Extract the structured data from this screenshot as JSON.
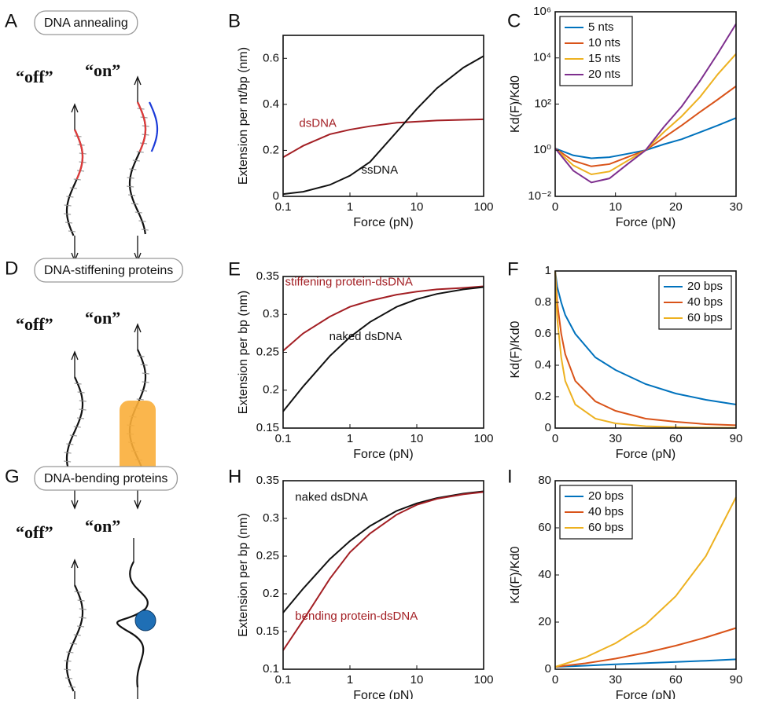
{
  "schematics": [
    {
      "label": "A",
      "title": "DNA annealing",
      "off": "“off”",
      "on": "“on”"
    },
    {
      "label": "D",
      "title": "DNA-stiffening proteins",
      "off": "“off”",
      "on": "“on”"
    },
    {
      "label": "G",
      "title": "DNA-bending proteins",
      "off": "“off”",
      "on": "“on”"
    }
  ],
  "chart_data": [
    {
      "type": "line",
      "panel": "B",
      "xlabel": "Force (pN)",
      "ylabel": "Extension per nt/bp (nm)",
      "xscale": "log",
      "xlim": [
        0.1,
        100
      ],
      "xticks": [
        0.1,
        1,
        10,
        100
      ],
      "ylim": [
        0,
        0.7
      ],
      "yticks": [
        0,
        0.2,
        0.4,
        0.6
      ],
      "x": [
        0.1,
        0.2,
        0.5,
        1,
        2,
        5,
        10,
        20,
        50,
        100
      ],
      "series": [
        {
          "name": "dsDNA",
          "color": "#a31f24",
          "values": [
            0.17,
            0.22,
            0.27,
            0.29,
            0.305,
            0.32,
            0.325,
            0.33,
            0.333,
            0.335
          ]
        },
        {
          "name": "ssDNA",
          "color": "#111111",
          "values": [
            0.01,
            0.02,
            0.05,
            0.09,
            0.15,
            0.28,
            0.38,
            0.47,
            0.56,
            0.61
          ]
        }
      ]
    },
    {
      "type": "line",
      "panel": "C",
      "xlabel": "Force (pN)",
      "ylabel": "Kd(F)/Kd0",
      "yscale": "log",
      "legend": "upper left",
      "xlim": [
        0,
        30
      ],
      "xticks": [
        0,
        10,
        20,
        30
      ],
      "ylim": [
        0.01,
        1000000
      ],
      "yticks": [
        {
          "value": 0.01,
          "label": "10⁻²"
        },
        {
          "value": 1,
          "label": "10⁰"
        },
        {
          "value": 100,
          "label": "10²"
        },
        {
          "value": 10000,
          "label": "10⁴"
        },
        {
          "value": 1000000,
          "label": "10⁶"
        }
      ],
      "x": [
        0,
        3,
        6,
        9,
        12,
        15,
        18,
        21,
        24,
        27,
        30
      ],
      "series": [
        {
          "name": "5 nts",
          "color": "#0072bd",
          "values": [
            1.2,
            0.6,
            0.45,
            0.5,
            0.7,
            1,
            1.8,
            3,
            6,
            12,
            25
          ]
        },
        {
          "name": "10 nts",
          "color": "#d95319",
          "values": [
            1.2,
            0.35,
            0.2,
            0.25,
            0.5,
            1,
            3.5,
            12,
            45,
            160,
            600
          ]
        },
        {
          "name": "15 nts",
          "color": "#edb120",
          "values": [
            1.2,
            0.22,
            0.09,
            0.12,
            0.35,
            1,
            6,
            30,
            200,
            2000,
            15000
          ]
        },
        {
          "name": "20 nts",
          "color": "#7e2f8e",
          "values": [
            1.2,
            0.13,
            0.04,
            0.06,
            0.25,
            1,
            10,
            80,
            1000,
            16000,
            300000
          ]
        }
      ]
    },
    {
      "type": "line",
      "panel": "E",
      "xlabel": "Force (pN)",
      "ylabel": "Extension per bp (nm)",
      "xscale": "log",
      "xlim": [
        0.1,
        100
      ],
      "xticks": [
        0.1,
        1,
        10,
        100
      ],
      "ylim": [
        0.15,
        0.35
      ],
      "yticks": [
        0.15,
        0.2,
        0.25,
        0.3,
        0.35
      ],
      "x": [
        0.1,
        0.2,
        0.5,
        1,
        2,
        5,
        10,
        20,
        50,
        100
      ],
      "series": [
        {
          "name": "stiffening protein-dsDNA",
          "color": "#a31f24",
          "values": [
            0.252,
            0.275,
            0.297,
            0.31,
            0.318,
            0.326,
            0.33,
            0.333,
            0.335,
            0.337
          ]
        },
        {
          "name": "naked dsDNA",
          "color": "#111111",
          "values": [
            0.172,
            0.205,
            0.245,
            0.27,
            0.29,
            0.31,
            0.32,
            0.327,
            0.333,
            0.336
          ]
        }
      ]
    },
    {
      "type": "line",
      "panel": "F",
      "xlabel": "Force (pN)",
      "ylabel": "Kd(F)/Kd0",
      "legend": "upper right",
      "xlim": [
        0,
        90
      ],
      "xticks": [
        0,
        30,
        60,
        90
      ],
      "ylim": [
        0,
        1
      ],
      "yticks": [
        0,
        0.2,
        0.4,
        0.6,
        0.8,
        1
      ],
      "x": [
        0,
        1,
        3,
        5,
        10,
        20,
        30,
        45,
        60,
        75,
        90
      ],
      "series": [
        {
          "name": "20 bps",
          "color": "#0072bd",
          "values": [
            1,
            0.9,
            0.8,
            0.72,
            0.6,
            0.45,
            0.37,
            0.28,
            0.22,
            0.18,
            0.15
          ]
        },
        {
          "name": "40 bps",
          "color": "#d95319",
          "values": [
            1,
            0.8,
            0.6,
            0.47,
            0.3,
            0.17,
            0.11,
            0.06,
            0.04,
            0.025,
            0.018
          ]
        },
        {
          "name": "60 bps",
          "color": "#edb120",
          "values": [
            1,
            0.7,
            0.45,
            0.3,
            0.15,
            0.06,
            0.03,
            0.012,
            0.006,
            0.003,
            0.002
          ]
        }
      ]
    },
    {
      "type": "line",
      "panel": "H",
      "xlabel": "Force (pN)",
      "ylabel": "Extension per bp (nm)",
      "xscale": "log",
      "xlim": [
        0.1,
        100
      ],
      "xticks": [
        0.1,
        1,
        10,
        100
      ],
      "ylim": [
        0.1,
        0.35
      ],
      "yticks": [
        0.1,
        0.15,
        0.2,
        0.25,
        0.3,
        0.35
      ],
      "x": [
        0.1,
        0.2,
        0.5,
        1,
        2,
        5,
        10,
        20,
        50,
        100
      ],
      "series": [
        {
          "name": "naked dsDNA",
          "color": "#111111",
          "values": [
            0.175,
            0.207,
            0.246,
            0.27,
            0.29,
            0.31,
            0.32,
            0.327,
            0.333,
            0.336
          ]
        },
        {
          "name": "bending protein-dsDNA",
          "color": "#a31f24",
          "values": [
            0.125,
            0.165,
            0.22,
            0.255,
            0.28,
            0.305,
            0.318,
            0.326,
            0.332,
            0.335
          ]
        }
      ]
    },
    {
      "type": "line",
      "panel": "I",
      "xlabel": "Force (pN)",
      "ylabel": "Kd(F)/Kd0",
      "legend": "upper left",
      "xlim": [
        0,
        90
      ],
      "xticks": [
        0,
        30,
        60,
        90
      ],
      "ylim": [
        0,
        80
      ],
      "yticks": [
        0,
        20,
        40,
        60,
        80
      ],
      "x": [
        0,
        15,
        30,
        45,
        60,
        75,
        90
      ],
      "series": [
        {
          "name": "20 bps",
          "color": "#0072bd",
          "values": [
            1,
            1.5,
            2.1,
            2.6,
            3.1,
            3.6,
            4.2
          ]
        },
        {
          "name": "40 bps",
          "color": "#d95319",
          "values": [
            1,
            2.5,
            4.5,
            7,
            10,
            13.5,
            17.5
          ]
        },
        {
          "name": "60 bps",
          "color": "#edb120",
          "values": [
            1,
            5,
            11,
            19,
            31,
            48,
            73
          ]
        }
      ]
    }
  ]
}
